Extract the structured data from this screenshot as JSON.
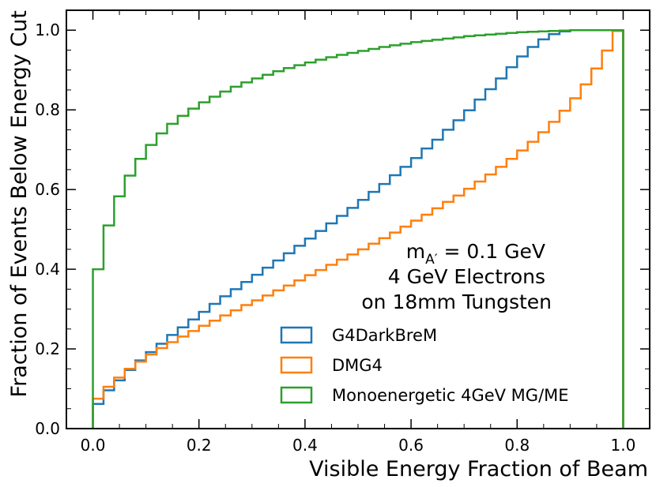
{
  "chart_data": {
    "type": "line",
    "xlabel": "Visible Energy Fraction of Beam",
    "ylabel": "Fraction of Events Below Energy Cut",
    "xlim": [
      -0.05,
      1.05
    ],
    "ylim": [
      0.0,
      1.05
    ],
    "x_ticks": [
      "0.0",
      "0.2",
      "0.4",
      "0.6",
      "0.8",
      "1.0"
    ],
    "y_ticks": [
      "0.0",
      "0.2",
      "0.4",
      "0.6",
      "0.8",
      "1.0"
    ],
    "grid": false,
    "legend_position": "lower-right",
    "annotation": {
      "mass_prefix": "m",
      "mass_sub": "A′",
      "mass_value": " = 0.1 GeV",
      "line2": "4 GeV Electrons",
      "line3": "on 18mm Tungsten"
    },
    "x_edges": [
      0.0,
      0.02,
      0.04,
      0.06,
      0.08,
      0.1,
      0.12,
      0.14,
      0.16,
      0.18,
      0.2,
      0.22,
      0.24,
      0.26,
      0.28,
      0.3,
      0.32,
      0.34,
      0.36,
      0.38,
      0.4,
      0.42,
      0.44,
      0.46,
      0.48,
      0.5,
      0.52,
      0.54,
      0.56,
      0.58,
      0.6,
      0.62,
      0.64,
      0.66,
      0.68,
      0.7,
      0.72,
      0.74,
      0.76,
      0.78,
      0.8,
      0.82,
      0.84,
      0.86,
      0.88,
      0.9,
      0.92,
      0.94,
      0.96,
      0.98,
      1.0
    ],
    "series": [
      {
        "name": "G4DarkBreM",
        "color": "#1f77b4",
        "values": [
          0.062,
          0.096,
          0.121,
          0.147,
          0.171,
          0.192,
          0.213,
          0.235,
          0.254,
          0.274,
          0.293,
          0.313,
          0.332,
          0.35,
          0.368,
          0.386,
          0.404,
          0.422,
          0.44,
          0.459,
          0.477,
          0.496,
          0.515,
          0.534,
          0.554,
          0.574,
          0.594,
          0.614,
          0.636,
          0.657,
          0.679,
          0.703,
          0.725,
          0.75,
          0.774,
          0.799,
          0.826,
          0.852,
          0.879,
          0.907,
          0.934,
          0.958,
          0.977,
          0.99,
          0.997,
          1.0,
          1.0,
          1.0,
          1.0,
          1.0
        ]
      },
      {
        "name": "DMG4",
        "color": "#ff7f0e",
        "values": [
          0.075,
          0.105,
          0.128,
          0.15,
          0.168,
          0.186,
          0.202,
          0.217,
          0.231,
          0.245,
          0.258,
          0.271,
          0.284,
          0.297,
          0.31,
          0.322,
          0.334,
          0.347,
          0.359,
          0.372,
          0.385,
          0.398,
          0.411,
          0.424,
          0.437,
          0.45,
          0.464,
          0.478,
          0.492,
          0.507,
          0.522,
          0.537,
          0.553,
          0.569,
          0.585,
          0.602,
          0.62,
          0.638,
          0.657,
          0.677,
          0.698,
          0.72,
          0.744,
          0.77,
          0.798,
          0.829,
          0.864,
          0.904,
          0.949,
          0.998
        ]
      },
      {
        "name": "Monoenergetic 4GeV MG/ME",
        "color": "#2ca02c",
        "values": [
          0.4,
          0.51,
          0.583,
          0.635,
          0.677,
          0.712,
          0.741,
          0.765,
          0.785,
          0.803,
          0.819,
          0.833,
          0.846,
          0.858,
          0.869,
          0.879,
          0.888,
          0.897,
          0.905,
          0.912,
          0.919,
          0.926,
          0.932,
          0.938,
          0.943,
          0.948,
          0.953,
          0.958,
          0.962,
          0.966,
          0.97,
          0.973,
          0.976,
          0.979,
          0.982,
          0.985,
          0.987,
          0.989,
          0.991,
          0.993,
          0.995,
          0.996,
          0.997,
          0.998,
          0.999,
          1.0,
          1.0,
          1.0,
          1.0,
          1.0
        ]
      }
    ]
  }
}
